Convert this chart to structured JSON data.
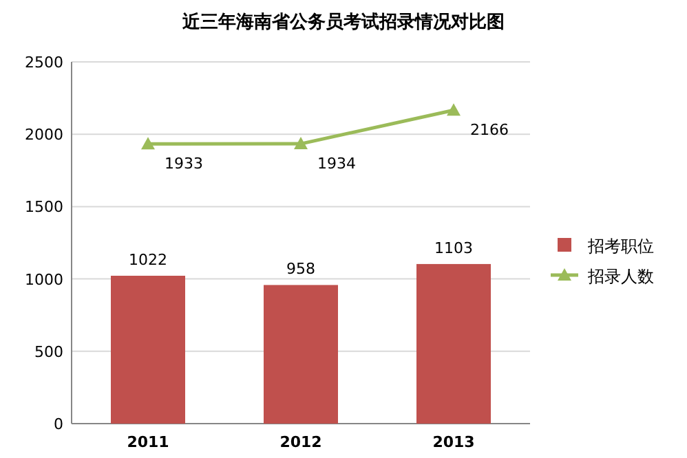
{
  "chart_data": {
    "type": "bar",
    "title": "近三年海南省公务员考试招录情况对比图",
    "categories": [
      "2011",
      "2012",
      "2013"
    ],
    "series": [
      {
        "name": "招考职位",
        "color": "#c0504d",
        "values": [
          1022,
          958,
          1103
        ]
      },
      {
        "name": "招录人数",
        "type": "line",
        "color": "#9bbb59",
        "marker": "triangle",
        "values": [
          1933,
          1934,
          2166
        ]
      }
    ],
    "ylim": [
      0,
      2500
    ],
    "yticks": [
      0,
      500,
      1000,
      1500,
      2000,
      2500
    ],
    "grid": "y",
    "legend": "right",
    "data_labels": true
  }
}
